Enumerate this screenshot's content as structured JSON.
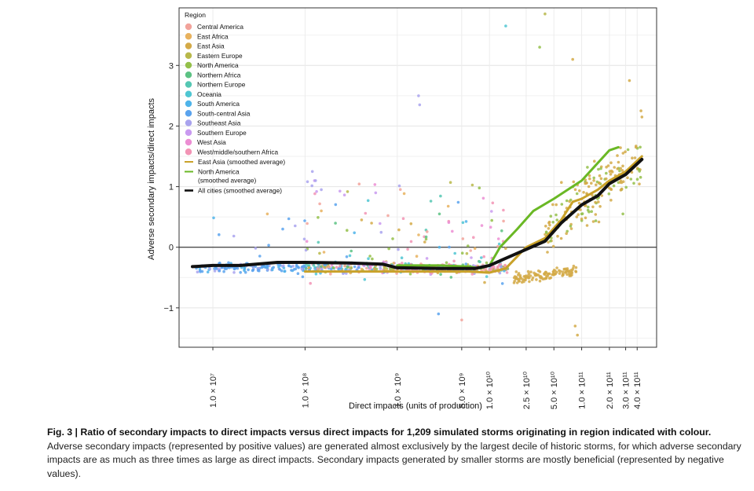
{
  "chart_data": {
    "type": "scatter",
    "x_scale": "log",
    "xlim": [
      4300000,
      650000000000
    ],
    "ylim": [
      -1.65,
      3.95
    ],
    "xlabel": "Direct impacts (units of production)",
    "ylabel": "Adverse secondary impacts/direct impacts",
    "y_ticks": [
      -1,
      0,
      1,
      2,
      3
    ],
    "x_ticks": [
      {
        "value": 10000000,
        "label": "1.0 × 10⁷"
      },
      {
        "value": 100000000,
        "label": "1.0 × 10⁸"
      },
      {
        "value": 1000000000,
        "label": "1.0 × 10⁹"
      },
      {
        "value": 5000000000,
        "label": "5.0 × 10⁹"
      },
      {
        "value": 10000000000,
        "label": "1.0 × 10¹⁰"
      },
      {
        "value": 25000000000,
        "label": "2.5 × 10¹⁰"
      },
      {
        "value": 50000000000,
        "label": "5.0 × 10¹⁰"
      },
      {
        "value": 100000000000,
        "label": "1.0 × 10¹¹"
      },
      {
        "value": 200000000000,
        "label": "2.0 × 10¹¹"
      },
      {
        "value": 300000000000,
        "label": "3.0 × 10¹¹"
      },
      {
        "value": 400000000000,
        "label": "4.0 × 10¹¹"
      }
    ],
    "grid": true,
    "legend_position": "top-left inside",
    "legend_title": "Region",
    "zero_line": true,
    "regions": [
      {
        "name": "Central America",
        "color": "#f2a39b"
      },
      {
        "name": "East Africa",
        "color": "#e8b25e"
      },
      {
        "name": "East Asia",
        "color": "#d4aa48"
      },
      {
        "name": "Eastern Europe",
        "color": "#b8b84a"
      },
      {
        "name": "North America",
        "color": "#94c04a"
      },
      {
        "name": "Northern Africa",
        "color": "#5cc283"
      },
      {
        "name": "Northern Europe",
        "color": "#55c7b3"
      },
      {
        "name": "Oceania",
        "color": "#4fc6d2"
      },
      {
        "name": "South America",
        "color": "#4fb4ea"
      },
      {
        "name": "South-central Asia",
        "color": "#5aa3ee"
      },
      {
        "name": "Southeast Asia",
        "color": "#a9a3ee"
      },
      {
        "name": "Southern Europe",
        "color": "#c99af0"
      },
      {
        "name": "West Asia",
        "color": "#ec8ed3"
      },
      {
        "name": "West/middle/southern Africa",
        "color": "#f294b5"
      }
    ],
    "lines": [
      {
        "name": "East Asia (smoothed average)",
        "color": "#c9a22a",
        "x": [
          100000000,
          300000000,
          1000000000,
          3000000000,
          6000000000,
          10000000000,
          15000000000,
          25000000000,
          40000000000,
          60000000000,
          80000000000,
          100000000000,
          150000000000,
          200000000000,
          300000000000,
          450000000000
        ],
        "y": [
          -0.4,
          -0.4,
          -0.4,
          -0.4,
          -0.4,
          -0.42,
          -0.35,
          0.0,
          0.15,
          0.45,
          0.75,
          0.8,
          0.95,
          1.1,
          1.25,
          1.5
        ]
      },
      {
        "name": "North America (smoothed average)",
        "color": "#6ab825",
        "x": [
          1000000000,
          3000000000,
          6000000000,
          8000000000,
          10000000000,
          13000000000,
          20000000000,
          30000000000,
          50000000000,
          100000000000,
          200000000000,
          250000000000
        ],
        "y": [
          -0.3,
          -0.3,
          -0.32,
          -0.35,
          -0.3,
          0.0,
          0.3,
          0.6,
          0.8,
          1.1,
          1.6,
          1.65
        ]
      },
      {
        "name": "All cities (smoothed average)",
        "color": "#111111",
        "x": [
          6000000,
          10000000,
          20000000,
          50000000,
          100000000,
          300000000,
          700000000,
          1000000000,
          3000000000,
          7000000000,
          10000000000,
          20000000000,
          40000000000,
          60000000000,
          100000000000,
          150000000000,
          200000000000,
          300000000000,
          450000000000
        ],
        "y": [
          -0.32,
          -0.3,
          -0.3,
          -0.25,
          -0.25,
          -0.26,
          -0.28,
          -0.34,
          -0.35,
          -0.35,
          -0.3,
          -0.1,
          0.1,
          0.4,
          0.7,
          0.85,
          1.05,
          1.2,
          1.45
        ]
      }
    ]
  },
  "caption": {
    "bold": "Fig. 3 | Ratio of secondary impacts to direct impacts versus direct impacts for 1,209 simulated storms originating in region indicated with colour.",
    "text": "Adverse secondary impacts (represented by positive values) are generated almost exclusively by the largest decile of historic storms, for which adverse secondary impacts are as much as three times as large as direct impacts. Secondary impacts generated by smaller storms are mostly beneficial (represented by negative values)."
  }
}
